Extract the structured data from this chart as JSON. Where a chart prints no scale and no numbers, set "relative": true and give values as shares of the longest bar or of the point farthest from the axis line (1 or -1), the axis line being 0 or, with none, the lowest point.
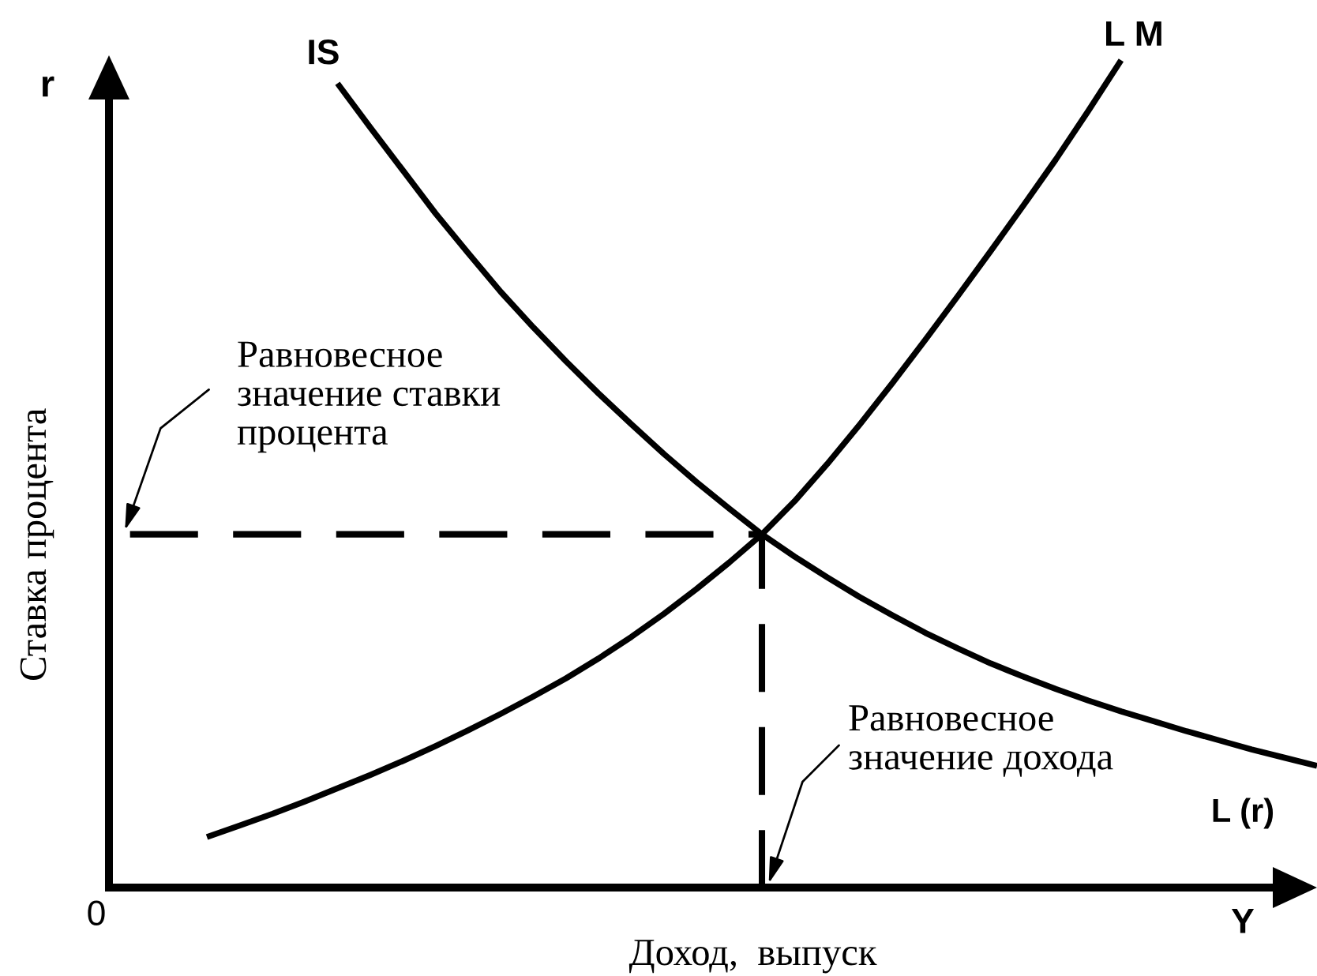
{
  "chart_data": {
    "type": "line",
    "relative": true,
    "xlabel": "Доход,  выпуск",
    "ylabel": "Ставка процента",
    "categories": [
      null,
      null,
      null,
      null,
      null,
      null,
      null,
      null,
      null,
      null,
      null,
      null,
      null,
      null,
      null,
      null,
      null,
      null,
      null,
      null,
      null,
      null,
      null,
      null,
      null,
      null,
      null,
      null,
      null,
      null,
      null,
      null,
      null,
      null,
      null,
      null,
      null,
      null
    ],
    "series": [
      {
        "name": "IS",
        "color": "#000000",
        "values": [
          null,
          null,
          null,
          null,
          null,
          null,
          null,
          0.972,
          0.919,
          0.867,
          0.815,
          0.767,
          0.72,
          0.677,
          0.636,
          0.597,
          0.56,
          0.524,
          0.49,
          0.458,
          0.427,
          0.4,
          0.375,
          0.351,
          0.329,
          0.308,
          0.289,
          0.271,
          0.255,
          0.24,
          0.226,
          0.213,
          0.201,
          0.189,
          0.178,
          0.167,
          0.157,
          0.147
        ]
      },
      {
        "name": "L M",
        "color": "#000000",
        "values": [
          null,
          null,
          null,
          0.061,
          0.075,
          0.089,
          0.104,
          0.12,
          0.136,
          0.153,
          0.171,
          0.19,
          0.21,
          0.231,
          0.253,
          0.277,
          0.303,
          0.331,
          0.361,
          0.393,
          0.427,
          0.467,
          0.512,
          0.56,
          0.61,
          0.662,
          0.715,
          0.769,
          0.824,
          0.88,
          0.939,
          1,
          null,
          null,
          null,
          null,
          null,
          null
        ]
      },
      {
        "type": "step",
        "color": "#000000",
        "line_style": "dashed",
        "values": [
          0.427,
          0.427,
          0.427,
          0.427,
          0.427,
          0.427,
          0.427,
          0.427,
          0.427,
          0.427,
          0.427,
          0.427,
          0.427,
          0.427,
          0.427,
          0.427,
          0.427,
          0.427,
          0.427,
          0.427,
          0,
          null,
          null,
          null,
          null,
          null,
          null,
          null,
          null,
          null,
          null,
          null,
          null,
          null,
          null,
          null,
          null,
          null
        ]
      }
    ],
    "annotations": [
      {
        "text": "Равновесное\nзначение ставки\nпроцента",
        "y": 0.427
      },
      "Равновесное\nзначение дохода",
      "L (r)",
      "r",
      "Y",
      "0"
    ]
  }
}
